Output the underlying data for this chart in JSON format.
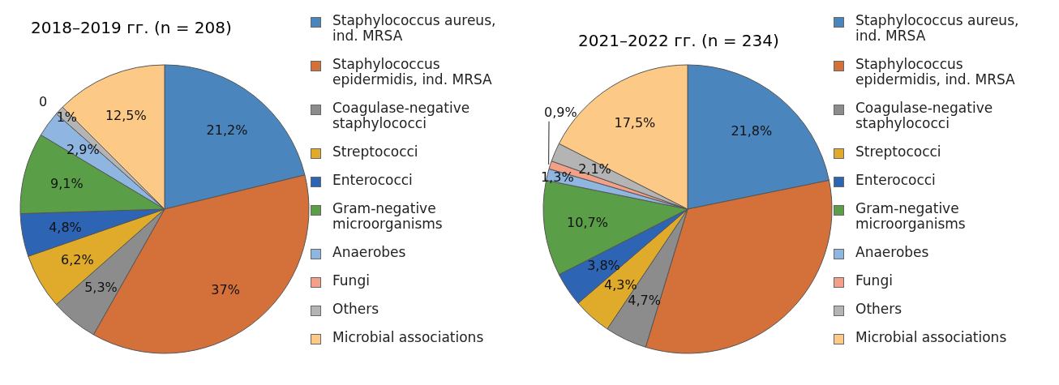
{
  "chart_data": [
    {
      "type": "pie",
      "title": "2018–2019 гг. (n = 208)",
      "legend": "right",
      "categories": [
        "Staphylococcus aureus, ind. MRSA",
        "Staphylococcus epidermidis, ind. MRSA",
        "Coagulase-negative staphylococci",
        "Streptococci",
        "Enterococci",
        "Gram-negative microorganisms",
        "Anaerobes",
        "Fungi",
        "Others",
        "Microbial associations"
      ],
      "values": [
        21.2,
        37,
        5.3,
        6.2,
        4.8,
        9.1,
        2.9,
        0,
        1,
        12.5
      ],
      "value_labels": [
        "21,2%",
        "37%",
        "5,3%",
        "6,2%",
        "4,8%",
        "9,1%",
        "2,9%",
        "0",
        "1%",
        "12,5%"
      ],
      "colors": [
        "#4a86bd",
        "#d4703a",
        "#8c8c8c",
        "#e0aa2a",
        "#2e64b4",
        "#5a9e48",
        "#8fb6e0",
        "#f2a088",
        "#b4b4b4",
        "#fcc987"
      ]
    },
    {
      "type": "pie",
      "title": "2021–2022 гг. (n = 234)",
      "legend": "right",
      "categories": [
        "Staphylococcus aureus, ind. MRSA",
        "Staphylococcus epidermidis, ind. MRSA",
        "Coagulase-negative staphylococci",
        "Streptococci",
        "Enterococci",
        "Gram-negative microorganisms",
        "Anaerobes",
        "Fungi",
        "Others",
        "Microbial associations"
      ],
      "values": [
        21.8,
        32.9,
        4.7,
        4.3,
        3.8,
        10.7,
        1.3,
        0.9,
        2.1,
        17.5
      ],
      "value_labels": [
        "21,8%",
        null,
        "4,7%",
        "4,3%",
        "3,8%",
        "10,7%",
        "1,3%",
        "0,9%",
        "2,1%",
        "17,5%"
      ],
      "colors": [
        "#4a86bd",
        "#d4703a",
        "#8c8c8c",
        "#e0aa2a",
        "#2e64b4",
        "#5a9e48",
        "#8fb6e0",
        "#f2a088",
        "#b4b4b4",
        "#fcc987"
      ]
    }
  ]
}
